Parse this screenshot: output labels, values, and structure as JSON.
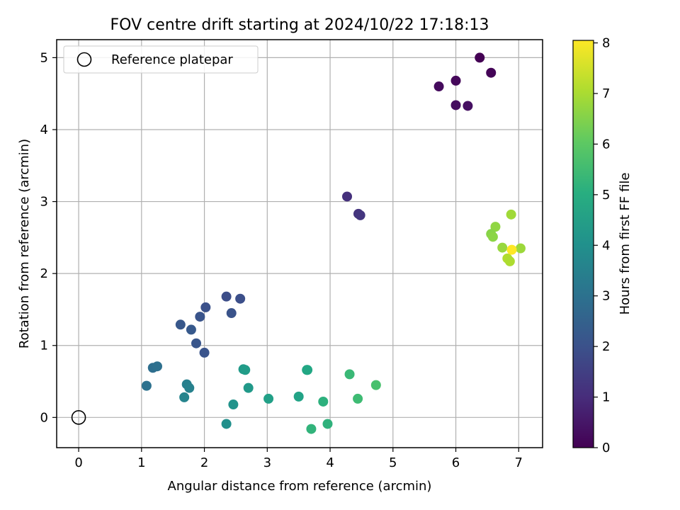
{
  "chart_data": {
    "type": "scatter",
    "title": "FOV centre drift starting at 2024/10/22 17:18:13",
    "xlabel": "Angular distance from reference (arcmin)",
    "ylabel": "Rotation from reference (arcmin)",
    "xlim": [
      -0.35,
      7.38
    ],
    "ylim": [
      -0.42,
      5.25
    ],
    "xticks": [
      "0",
      "1",
      "2",
      "3",
      "4",
      "5",
      "6",
      "7"
    ],
    "yticks": [
      "0",
      "1",
      "2",
      "3",
      "4",
      "5"
    ],
    "grid": true,
    "legend": {
      "placement": "top-left",
      "entries": [
        "Reference platepar"
      ]
    },
    "reference": {
      "x": 0,
      "y": 0,
      "marker": "open-circle",
      "color": "#000000"
    },
    "colorbar": {
      "label": "Hours from first FF file",
      "colormap": "viridis",
      "range": [
        0,
        8.05
      ],
      "ticks": [
        "0",
        "1",
        "2",
        "3",
        "4",
        "5",
        "6",
        "7",
        "8"
      ]
    },
    "points": [
      {
        "x": 6.38,
        "y": 5.0,
        "t": 0.0
      },
      {
        "x": 6.56,
        "y": 4.79,
        "t": 0.08
      },
      {
        "x": 6.0,
        "y": 4.68,
        "t": 0.15
      },
      {
        "x": 5.73,
        "y": 4.6,
        "t": 0.22
      },
      {
        "x": 6.0,
        "y": 4.34,
        "t": 0.28
      },
      {
        "x": 6.19,
        "y": 4.33,
        "t": 0.35
      },
      {
        "x": 4.27,
        "y": 3.07,
        "t": 1.1
      },
      {
        "x": 4.45,
        "y": 2.83,
        "t": 1.2
      },
      {
        "x": 4.48,
        "y": 2.81,
        "t": 1.25
      },
      {
        "x": 2.35,
        "y": 1.68,
        "t": 1.9
      },
      {
        "x": 2.57,
        "y": 1.65,
        "t": 1.95
      },
      {
        "x": 2.02,
        "y": 1.53,
        "t": 2.0
      },
      {
        "x": 2.43,
        "y": 1.45,
        "t": 2.05
      },
      {
        "x": 1.93,
        "y": 1.4,
        "t": 2.1
      },
      {
        "x": 1.62,
        "y": 1.29,
        "t": 2.2
      },
      {
        "x": 1.79,
        "y": 1.22,
        "t": 2.25
      },
      {
        "x": 1.87,
        "y": 1.03,
        "t": 2.15
      },
      {
        "x": 2.0,
        "y": 0.9,
        "t": 2.1
      },
      {
        "x": 1.18,
        "y": 0.69,
        "t": 2.9
      },
      {
        "x": 1.25,
        "y": 0.71,
        "t": 2.95
      },
      {
        "x": 1.08,
        "y": 0.44,
        "t": 3.0
      },
      {
        "x": 1.72,
        "y": 0.46,
        "t": 3.45
      },
      {
        "x": 1.76,
        "y": 0.41,
        "t": 3.5
      },
      {
        "x": 1.68,
        "y": 0.28,
        "t": 3.6
      },
      {
        "x": 2.62,
        "y": 0.67,
        "t": 4.35
      },
      {
        "x": 2.65,
        "y": 0.66,
        "t": 4.4
      },
      {
        "x": 2.7,
        "y": 0.41,
        "t": 4.3
      },
      {
        "x": 2.46,
        "y": 0.18,
        "t": 4.1
      },
      {
        "x": 2.35,
        "y": -0.09,
        "t": 4.0
      },
      {
        "x": 3.02,
        "y": 0.26,
        "t": 4.55
      },
      {
        "x": 3.5,
        "y": 0.29,
        "t": 4.65
      },
      {
        "x": 3.63,
        "y": 0.66,
        "t": 4.75
      },
      {
        "x": 3.64,
        "y": 0.66,
        "t": 4.8
      },
      {
        "x": 3.89,
        "y": 0.22,
        "t": 5.1
      },
      {
        "x": 3.96,
        "y": -0.09,
        "t": 5.15
      },
      {
        "x": 3.7,
        "y": -0.16,
        "t": 5.2
      },
      {
        "x": 4.31,
        "y": 0.6,
        "t": 5.4
      },
      {
        "x": 4.44,
        "y": 0.26,
        "t": 5.5
      },
      {
        "x": 4.73,
        "y": 0.45,
        "t": 5.7
      },
      {
        "x": 6.88,
        "y": 2.82,
        "t": 6.9
      },
      {
        "x": 6.63,
        "y": 2.65,
        "t": 6.7
      },
      {
        "x": 6.56,
        "y": 2.55,
        "t": 6.6
      },
      {
        "x": 6.59,
        "y": 2.51,
        "t": 6.65
      },
      {
        "x": 6.74,
        "y": 2.36,
        "t": 6.8
      },
      {
        "x": 7.03,
        "y": 2.35,
        "t": 6.85
      },
      {
        "x": 6.82,
        "y": 2.21,
        "t": 7.1
      },
      {
        "x": 6.86,
        "y": 2.17,
        "t": 7.05
      },
      {
        "x": 6.89,
        "y": 2.33,
        "t": 8.05
      }
    ]
  }
}
